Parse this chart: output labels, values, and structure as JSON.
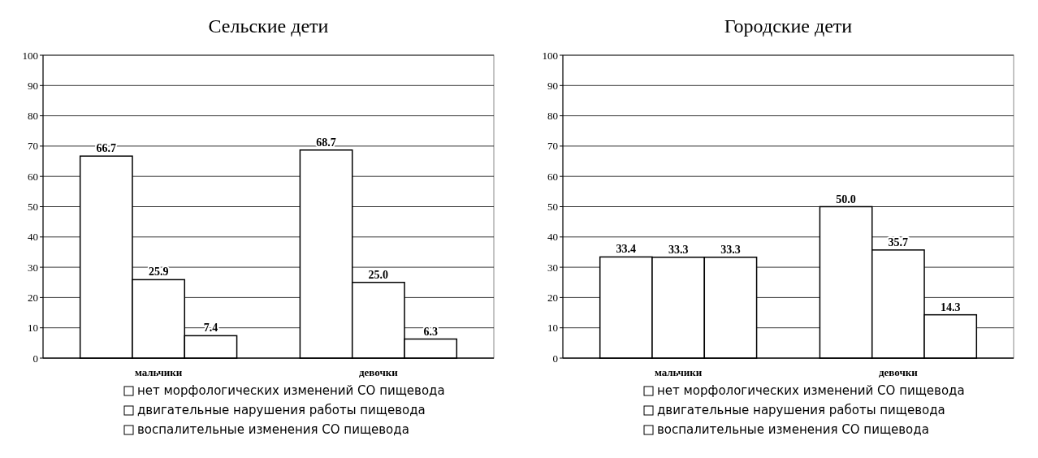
{
  "chart_data": [
    {
      "type": "bar",
      "title": "Сельские дети",
      "categories": [
        "мальчики",
        "девочки"
      ],
      "series": [
        {
          "name": "нет морфологических изменений СО пищевода",
          "color": "#ffffff",
          "values": [
            66.7,
            68.7
          ],
          "value_labels": [
            "66.7",
            "68.7"
          ]
        },
        {
          "name": "двигательные нарушения работы пищевода",
          "color": "#ffffff",
          "values": [
            25.9,
            25.0
          ],
          "value_labels": [
            "25.9",
            "25.0"
          ]
        },
        {
          "name": "воспалительные изменения СО пищевода",
          "color": "#ffffff",
          "values": [
            7.4,
            6.3
          ],
          "value_labels": [
            "7.4",
            "6.3"
          ]
        }
      ],
      "ylim": [
        0,
        100
      ],
      "yticks": [
        0,
        10,
        20,
        30,
        40,
        50,
        60,
        70,
        80,
        90,
        100
      ],
      "grid": "y",
      "legend": "bottom"
    },
    {
      "type": "bar",
      "title": "Городские дети",
      "categories": [
        "мальчики",
        "девочки"
      ],
      "series": [
        {
          "name": "нет морфологических изменений СО пищевода",
          "color": "#ffffff",
          "values": [
            33.4,
            50.0
          ],
          "value_labels": [
            "33.4",
            "50.0"
          ]
        },
        {
          "name": "двигательные нарушения работы пищевода",
          "color": "#ffffff",
          "values": [
            33.3,
            35.7
          ],
          "value_labels": [
            "33.3",
            "35.7"
          ]
        },
        {
          "name": "воспалительные изменения СО пищевода",
          "color": "#ffffff",
          "values": [
            33.3,
            14.3
          ],
          "value_labels": [
            "33.3",
            "14.3"
          ]
        }
      ],
      "ylim": [
        0,
        100
      ],
      "yticks": [
        0,
        10,
        20,
        30,
        40,
        50,
        60,
        70,
        80,
        90,
        100
      ],
      "grid": "y",
      "legend": "bottom"
    }
  ]
}
